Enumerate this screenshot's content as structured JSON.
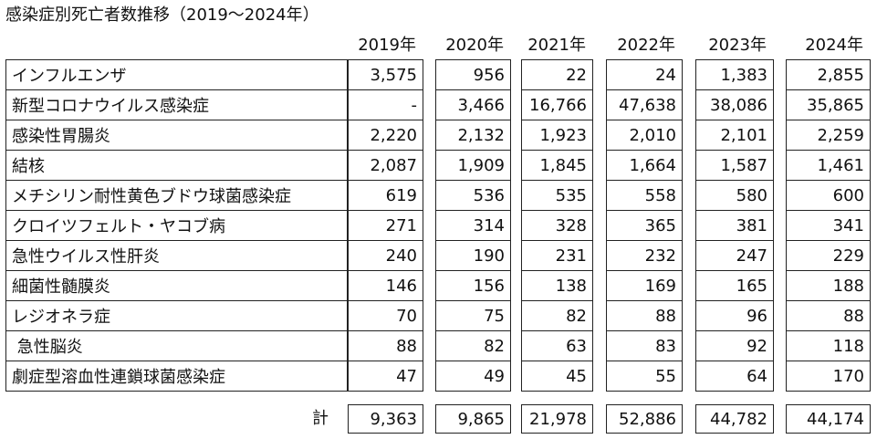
{
  "title": "感染症別死亡者数推移（2019～2024年）",
  "years": [
    "2019年",
    "2020年",
    "2021年",
    "2022年",
    "2023年",
    "2024年"
  ],
  "rows": [
    {
      "name": "インフルエンザ",
      "values": [
        "3,575",
        "956",
        "22",
        "24",
        "1,383",
        "2,855"
      ]
    },
    {
      "name": "新型コロナウイルス感染症",
      "values": [
        "-",
        "3,466",
        "16,766",
        "47,638",
        "38,086",
        "35,865"
      ]
    },
    {
      "name": "感染性胃腸炎",
      "values": [
        "2,220",
        "2,132",
        "1,923",
        "2,010",
        "2,101",
        "2,259"
      ]
    },
    {
      "name": "結核",
      "values": [
        "2,087",
        "1,909",
        "1,845",
        "1,664",
        "1,587",
        "1,461"
      ]
    },
    {
      "name": "メチシリン耐性黄色ブドウ球菌感染症",
      "values": [
        "619",
        "536",
        "535",
        "558",
        "580",
        "600"
      ]
    },
    {
      "name": "クロイツフェルト・ヤコブ病",
      "values": [
        "271",
        "314",
        "328",
        "365",
        "381",
        "341"
      ]
    },
    {
      "name": "急性ウイルス性肝炎",
      "values": [
        "240",
        "190",
        "231",
        "232",
        "247",
        "229"
      ]
    },
    {
      "name": "細菌性髄膜炎",
      "values": [
        "146",
        "156",
        "138",
        "169",
        "165",
        "188"
      ]
    },
    {
      "name": "レジオネラ症",
      "values": [
        "70",
        "75",
        "82",
        "88",
        "96",
        "88"
      ]
    },
    {
      "name": " 急性脳炎",
      "values": [
        "88",
        "82",
        "63",
        "83",
        "92",
        "118"
      ]
    },
    {
      "name": "劇症型溶血性連鎖球菌感染症",
      "values": [
        "47",
        "49",
        "45",
        "55",
        "64",
        "170"
      ]
    }
  ],
  "total": {
    "label": "計",
    "values": [
      "9,363",
      "9,865",
      "21,978",
      "52,886",
      "44,782",
      "44,174"
    ]
  }
}
